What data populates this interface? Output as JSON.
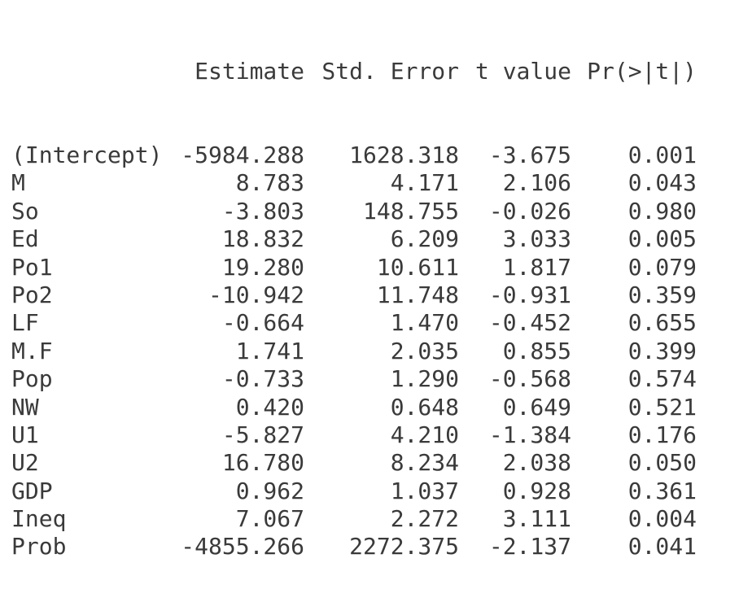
{
  "table": {
    "columns": [
      "",
      "Estimate",
      "Std. Error",
      "t value",
      "Pr(>|t|)"
    ],
    "rows": [
      {
        "term": "(Intercept)",
        "estimate": "-5984.288",
        "std_error": "1628.318",
        "t_value": "-3.675",
        "p_value": "0.001"
      },
      {
        "term": "M",
        "estimate": "8.783",
        "std_error": "4.171",
        "t_value": "2.106",
        "p_value": "0.043"
      },
      {
        "term": "So",
        "estimate": "-3.803",
        "std_error": "148.755",
        "t_value": "-0.026",
        "p_value": "0.980"
      },
      {
        "term": "Ed",
        "estimate": "18.832",
        "std_error": "6.209",
        "t_value": "3.033",
        "p_value": "0.005"
      },
      {
        "term": "Po1",
        "estimate": "19.280",
        "std_error": "10.611",
        "t_value": "1.817",
        "p_value": "0.079"
      },
      {
        "term": "Po2",
        "estimate": "-10.942",
        "std_error": "11.748",
        "t_value": "-0.931",
        "p_value": "0.359"
      },
      {
        "term": "LF",
        "estimate": "-0.664",
        "std_error": "1.470",
        "t_value": "-0.452",
        "p_value": "0.655"
      },
      {
        "term": "M.F",
        "estimate": "1.741",
        "std_error": "2.035",
        "t_value": "0.855",
        "p_value": "0.399"
      },
      {
        "term": "Pop",
        "estimate": "-0.733",
        "std_error": "1.290",
        "t_value": "-0.568",
        "p_value": "0.574"
      },
      {
        "term": "NW",
        "estimate": "0.420",
        "std_error": "0.648",
        "t_value": "0.649",
        "p_value": "0.521"
      },
      {
        "term": "U1",
        "estimate": "-5.827",
        "std_error": "4.210",
        "t_value": "-1.384",
        "p_value": "0.176"
      },
      {
        "term": "U2",
        "estimate": "16.780",
        "std_error": "8.234",
        "t_value": "2.038",
        "p_value": "0.050"
      },
      {
        "term": "GDP",
        "estimate": "0.962",
        "std_error": "1.037",
        "t_value": "0.928",
        "p_value": "0.361"
      },
      {
        "term": "Ineq",
        "estimate": "7.067",
        "std_error": "2.272",
        "t_value": "3.111",
        "p_value": "0.004"
      },
      {
        "term": "Prob",
        "estimate": "-4855.266",
        "std_error": "2272.375",
        "t_value": "-2.137",
        "p_value": "0.041"
      }
    ]
  }
}
